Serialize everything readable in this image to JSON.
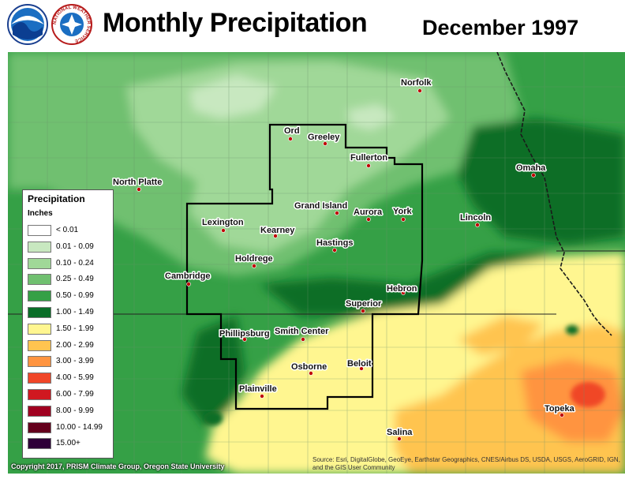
{
  "title": "Monthly Precipitation",
  "date": "December 1997",
  "logos": {
    "left": "noaa-logo",
    "right": "nws-logo",
    "nws_ring_text": "NATIONAL WEATHER SERVICE"
  },
  "legend": {
    "title": "Precipitation",
    "units": "Inches",
    "items": [
      {
        "label": "< 0.01",
        "color": "#ffffff"
      },
      {
        "label": "0.01 - 0.09",
        "color": "#c8e8c0"
      },
      {
        "label": "0.10 - 0.24",
        "color": "#a0d898"
      },
      {
        "label": "0.25 - 0.49",
        "color": "#70c070"
      },
      {
        "label": "0.50 - 0.99",
        "color": "#35a046"
      },
      {
        "label": "1.00 - 1.49",
        "color": "#0a6e28"
      },
      {
        "label": "1.50 - 1.99",
        "color": "#fff690"
      },
      {
        "label": "2.00 - 2.99",
        "color": "#ffc450"
      },
      {
        "label": "3.00 - 3.99",
        "color": "#ff9440"
      },
      {
        "label": "4.00 - 5.99",
        "color": "#f04628"
      },
      {
        "label": "6.00 - 7.99",
        "color": "#d01820"
      },
      {
        "label": "8.00 - 9.99",
        "color": "#a00020"
      },
      {
        "label": "10.00 - 14.99",
        "color": "#64001c"
      },
      {
        "label": "15.00+",
        "color": "#2e0038"
      }
    ]
  },
  "cities": [
    {
      "name": "Norfolk"
    },
    {
      "name": "Ord"
    },
    {
      "name": "Greeley"
    },
    {
      "name": "Fullerton"
    },
    {
      "name": "North Platte"
    },
    {
      "name": "Omaha"
    },
    {
      "name": "Grand Island"
    },
    {
      "name": "Aurora"
    },
    {
      "name": "York"
    },
    {
      "name": "Lincoln"
    },
    {
      "name": "Lexington"
    },
    {
      "name": "Kearney"
    },
    {
      "name": "Hastings"
    },
    {
      "name": "Holdrege"
    },
    {
      "name": "Cambridge"
    },
    {
      "name": "Hebron"
    },
    {
      "name": "Superior"
    },
    {
      "name": "Phillipsburg"
    },
    {
      "name": "Smith Center"
    },
    {
      "name": "Osborne"
    },
    {
      "name": "Beloit"
    },
    {
      "name": "Plainville"
    },
    {
      "name": "Topeka"
    },
    {
      "name": "Salina"
    }
  ],
  "copyright": "Copyright 2017, PRISM Climate Group, Oregon State University",
  "source": "Source: Esri, DigitalGlobe, GeoEye, Earthstar Geographics, CNES/Airbus DS, USDA, USGS, AeroGRID, IGN, and the GIS User Community"
}
